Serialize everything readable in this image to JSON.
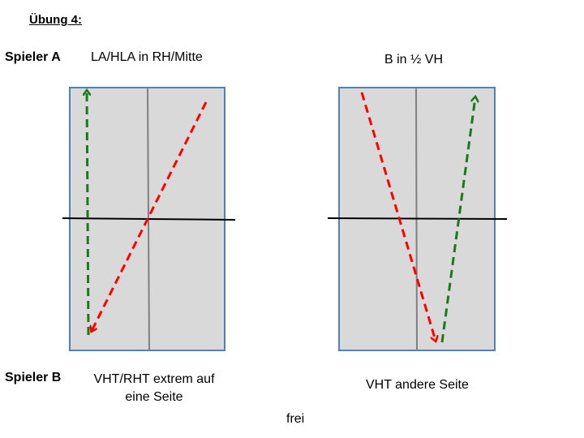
{
  "title": "Übung 4:",
  "player_a": {
    "label": "Spieler A",
    "left_task": "LA/HLA in RH/Mitte",
    "right_task": "B in ½ VH"
  },
  "player_b": {
    "label": "Spieler B",
    "left_task": "VHT/RHT extrem auf eine Seite",
    "right_task": "VHT andere Seite"
  },
  "footer": "frei",
  "colors": {
    "table_fill": "#d9d9d9",
    "table_border": "#4f81bd",
    "center_line": "#808080",
    "net": "#000000",
    "arrow_green": "#1a7a1a",
    "arrow_red": "#ff0000"
  }
}
